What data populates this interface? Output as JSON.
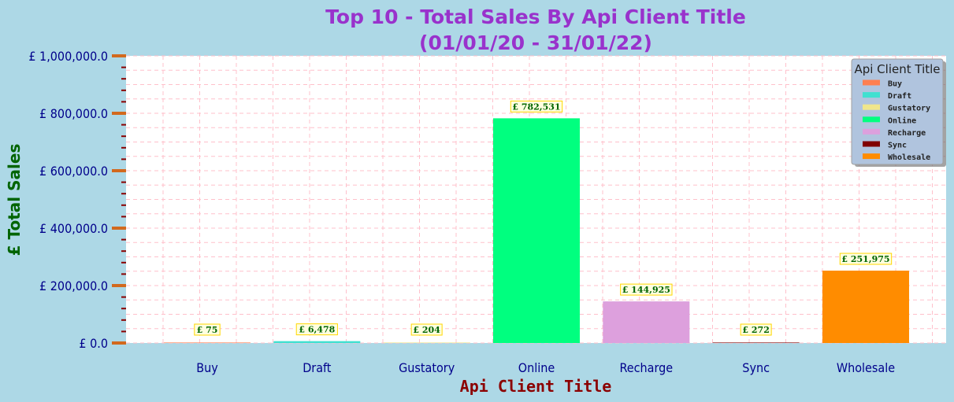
{
  "chart_data": {
    "type": "bar",
    "title": "Top 10 - Total Sales By Api Client Title",
    "subtitle": "(01/01/20 - 31/01/22)",
    "xlabel": "Api Client Title",
    "ylabel": "£ Total Sales",
    "categories": [
      "Buy",
      "Draft",
      "Gustatory",
      "Online",
      "Recharge",
      "Sync",
      "Wholesale"
    ],
    "values": [
      75,
      6478,
      204,
      782531,
      144925,
      272,
      251975
    ],
    "data_labels": [
      "£ 75",
      "£ 6,478",
      "£ 204",
      "£ 782,531",
      "£ 144,925",
      "£ 272",
      "£ 251,975"
    ],
    "colors": [
      "#ff7f50",
      "#40e0d0",
      "#f0e68c",
      "#00ff7f",
      "#dda0dd",
      "#800000",
      "#ff8c00"
    ],
    "ylim": [
      0,
      1000000
    ],
    "yticks": [
      0,
      200000,
      400000,
      600000,
      800000,
      1000000
    ],
    "ytick_labels": [
      "£ 0.0",
      "£ 200,000.0",
      "£ 400,000.0",
      "£ 600,000.0",
      "£ 800,000.0",
      "£ 1,000,000.0"
    ],
    "grid": true,
    "legend": {
      "title": "Api Client Title",
      "placement": "top-right",
      "entries": [
        "Buy",
        "Draft",
        "Gustatory",
        "Online",
        "Recharge",
        "Sync",
        "Wholesale"
      ]
    }
  }
}
